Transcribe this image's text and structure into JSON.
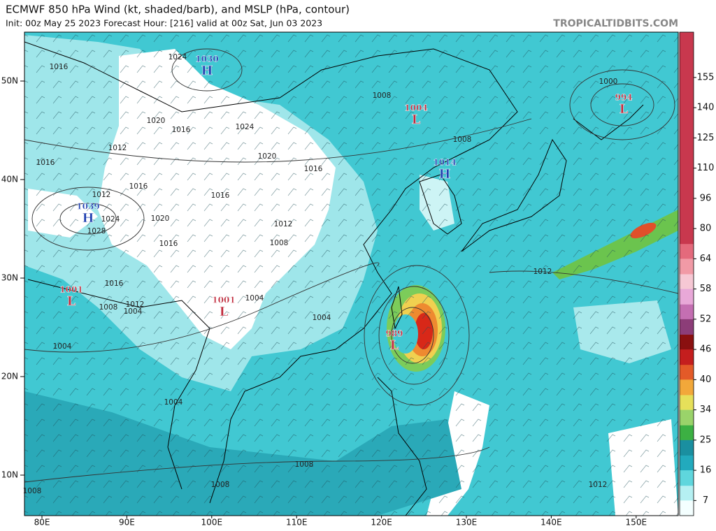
{
  "header": {
    "title": "ECMWF 850 hPa Wind (kt, shaded/barb), and MSLP (hPa, contour)",
    "subtitle": "Init: 00z May 25 2023   Forecast Hour: [216]   valid at 00z Sat, Jun 03 2023",
    "site": "TROPICALTIDBITS.COM"
  },
  "map": {
    "latitude_labels": [
      "50N",
      "40N",
      "30N",
      "20N",
      "10N"
    ],
    "longitude_labels": [
      "80E",
      "90E",
      "100E",
      "110E",
      "120E",
      "130E",
      "140E",
      "150E"
    ],
    "pressure_centers": [
      {
        "letter": "H",
        "value": 1030
      },
      {
        "letter": "H",
        "value": 1039
      },
      {
        "letter": "H",
        "value": 1014
      },
      {
        "letter": "L",
        "value": 1004
      },
      {
        "letter": "L",
        "value": 994
      },
      {
        "letter": "L",
        "value": 1001
      },
      {
        "letter": "L",
        "value": 1001
      },
      {
        "letter": "L",
        "value": 989
      }
    ],
    "contour_labels": [
      1024,
      1016,
      1020,
      1016,
      1024,
      1016,
      1012,
      1020,
      1016,
      1012,
      1016,
      1016,
      1024,
      1020,
      1028,
      1016,
      1012,
      1008,
      1016,
      1008,
      1012,
      1004,
      1004,
      1004,
      1004,
      1004,
      1008,
      1008,
      1008,
      1008,
      1008,
      1000,
      1012,
      1012
    ]
  },
  "colorbar": {
    "ticks": [
      7,
      16,
      25,
      34,
      40,
      46,
      52,
      58,
      64,
      80,
      96,
      110,
      125,
      140,
      155
    ]
  }
}
